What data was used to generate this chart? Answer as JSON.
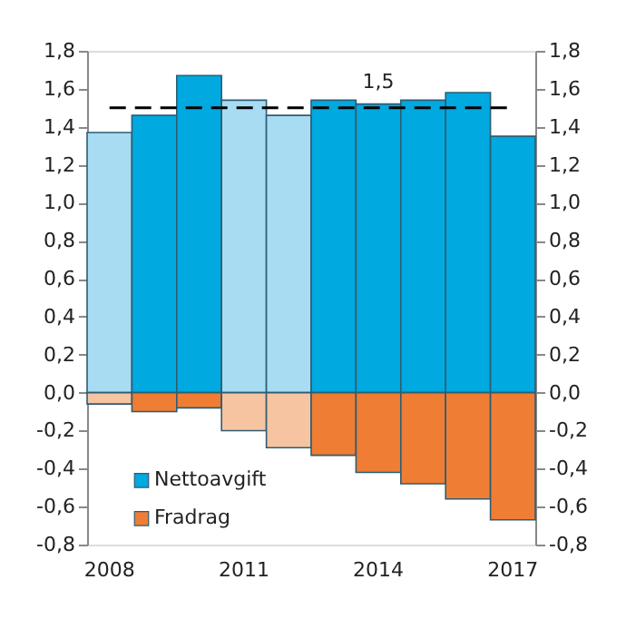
{
  "chart_data": {
    "type": "bar",
    "categories": [
      "2008",
      null,
      null,
      "2011",
      null,
      null,
      "2014",
      null,
      null,
      "2017"
    ],
    "series": [
      {
        "name": "Nettoavgift",
        "color": "#00a9e0",
        "colors": [
          "#a8dcf3",
          "#00a9e0",
          "#00a9e0",
          "#a8dcf3",
          "#a8dcf3",
          "#00a9e0",
          "#00a9e0",
          "#00a9e0",
          "#00a9e0",
          "#00a9e0"
        ],
        "values": [
          1.37,
          1.46,
          1.67,
          1.54,
          1.46,
          1.54,
          1.52,
          1.54,
          1.58,
          1.35
        ]
      },
      {
        "name": "Fradrag",
        "color": "#ef7d33",
        "colors": [
          "#f7c4a2",
          "#ef7d33",
          "#ef7d33",
          "#f7c4a2",
          "#f7c4a2",
          "#ef7d33",
          "#ef7d33",
          "#ef7d33",
          "#ef7d33",
          "#ef7d33"
        ],
        "values": [
          -0.06,
          -0.1,
          -0.08,
          -0.2,
          -0.29,
          -0.33,
          -0.42,
          -0.48,
          -0.56,
          -0.67
        ]
      }
    ],
    "ylim": [
      -0.8,
      1.8
    ],
    "yticks": [
      {
        "value": -0.8,
        "label": "-0,8"
      },
      {
        "value": -0.6,
        "label": "-0,6"
      },
      {
        "value": -0.4,
        "label": "-0,4"
      },
      {
        "value": -0.2,
        "label": "-0,2"
      },
      {
        "value": 0,
        "label": "0,0"
      },
      {
        "value": 0.2,
        "label": "0,2"
      },
      {
        "value": 0.4,
        "label": "0,4"
      },
      {
        "value": 0.6,
        "label": "0,6"
      },
      {
        "value": 0.8,
        "label": "0,8"
      },
      {
        "value": 1.0,
        "label": "1,0"
      },
      {
        "value": 1.2,
        "label": "1,2"
      },
      {
        "value": 1.4,
        "label": "1,4"
      },
      {
        "value": 1.6,
        "label": "1,6"
      },
      {
        "value": 1.8,
        "label": "1,8"
      }
    ],
    "y2lim": [
      -0.8,
      1.8
    ],
    "y2ticks": [
      {
        "value": -0.8,
        "label": "-0,8"
      },
      {
        "value": -0.6,
        "label": "-0,6"
      },
      {
        "value": -0.4,
        "label": "-0,4"
      },
      {
        "value": -0.2,
        "label": "-0,2"
      },
      {
        "value": 0,
        "label": "0,0"
      },
      {
        "value": 0.2,
        "label": "0,2"
      },
      {
        "value": 0.4,
        "label": "0,4"
      },
      {
        "value": 0.6,
        "label": "0,6"
      },
      {
        "value": 0.8,
        "label": "0,8"
      },
      {
        "value": 1.0,
        "label": "1,0"
      },
      {
        "value": 1.2,
        "label": "1,2"
      },
      {
        "value": 1.4,
        "label": "1,4"
      },
      {
        "value": 1.6,
        "label": "1,6"
      },
      {
        "value": 1.8,
        "label": "1,8"
      }
    ],
    "ref_lines": [
      {
        "axis": "y",
        "value": 1.5,
        "label": "1,5",
        "color": "#000000",
        "line_style": "dashed"
      }
    ],
    "legend": "bottom left",
    "stacked": true,
    "grid": false
  }
}
